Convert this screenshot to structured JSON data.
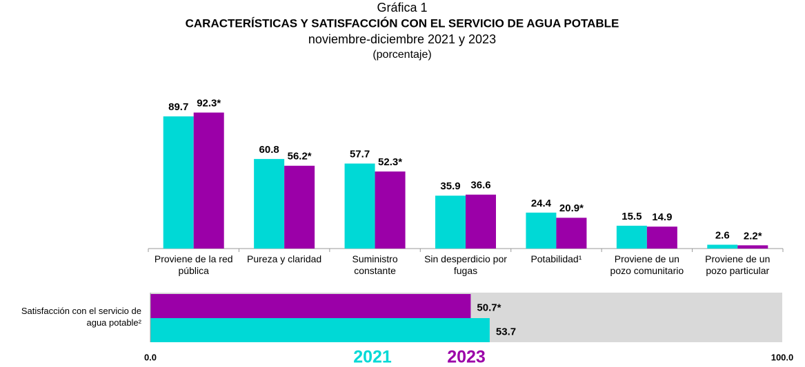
{
  "chart_data": [
    {
      "type": "bar",
      "title": "Gráfica 1",
      "subtitle": "CARACTERÍSTICAS Y SATISFACCIÓN CON EL SERVICIO DE AGUA POTABLE",
      "period": "noviembre-diciembre 2021 y 2023",
      "unit": "(porcentaje)",
      "categories": [
        "Proviene de la red pública",
        "Pureza y claridad",
        "Suministro constante",
        "Sin desperdicio por fugas",
        "Potabilidad¹",
        "Proviene de un pozo comunitario",
        "Proviene de un pozo particular"
      ],
      "series": [
        {
          "name": "2021",
          "color": "#00d9d6",
          "values": [
            89.7,
            60.8,
            57.7,
            35.9,
            24.4,
            15.5,
            2.6
          ]
        },
        {
          "name": "2023",
          "color": "#9b00a8",
          "values": [
            92.3,
            56.2,
            52.3,
            36.6,
            20.9,
            14.9,
            2.2
          ],
          "value_labels": [
            "92.3*",
            "56.2*",
            "52.3*",
            "36.6",
            "20.9*",
            "14.9",
            "2.2*"
          ]
        }
      ]
    },
    {
      "type": "hbar",
      "categories": [
        "Satisfacción con el servicio de agua potable²"
      ],
      "series": [
        {
          "name": "2023",
          "color": "#9b00a8",
          "values": [
            50.7
          ],
          "value_labels": [
            "50.7*"
          ]
        },
        {
          "name": "2021",
          "color": "#00d9d6",
          "values": [
            53.7
          ]
        }
      ],
      "xlim": [
        0,
        100
      ],
      "xticks": [
        {
          "value": 0,
          "label": "0.0"
        },
        {
          "value": 100,
          "label": "100.0"
        }
      ],
      "background": "#d9d9d9"
    }
  ]
}
